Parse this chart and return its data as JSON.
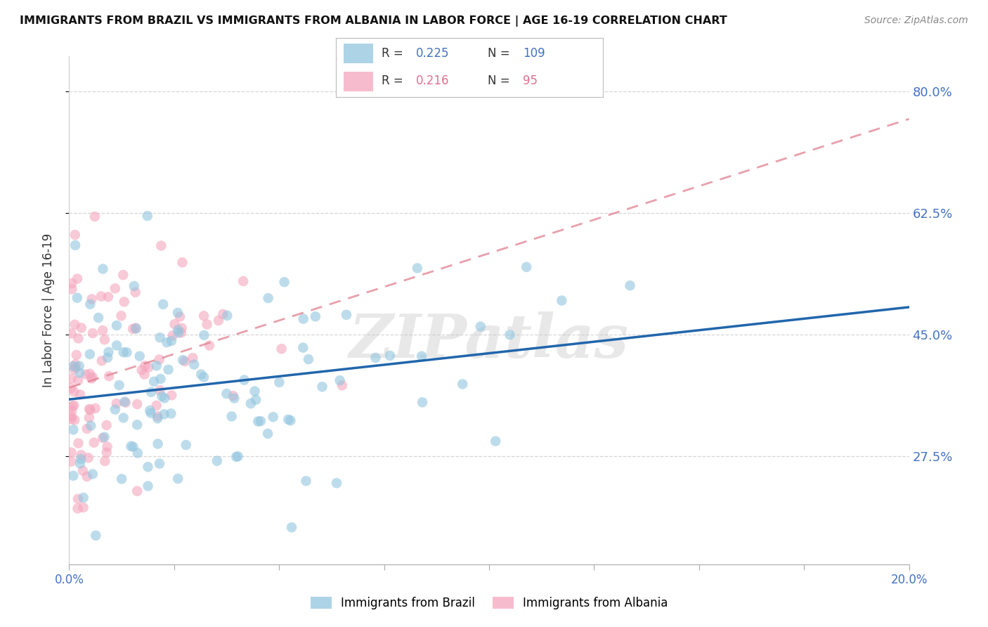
{
  "title": "IMMIGRANTS FROM BRAZIL VS IMMIGRANTS FROM ALBANIA IN LABOR FORCE | AGE 16-19 CORRELATION CHART",
  "source": "Source: ZipAtlas.com",
  "ylabel": "In Labor Force | Age 16-19",
  "x_min": 0.0,
  "x_max": 20.0,
  "y_min": 12.0,
  "y_max": 85.0,
  "y_ticks": [
    27.5,
    45.0,
    62.5,
    80.0
  ],
  "brazil_color": "#92c5de",
  "albania_color": "#f4a6bd",
  "brazil_line_color": "#2166ac",
  "albania_line_color": "#e08090",
  "brazil_R": 0.225,
  "brazil_N": 109,
  "albania_R": 0.216,
  "albania_N": 95,
  "brazil_label": "Immigrants from Brazil",
  "albania_label": "Immigrants from Albania",
  "watermark": "ZIPatlas",
  "background_color": "#ffffff",
  "grid_color": "#cccccc",
  "legend_R_color": "#4472c4",
  "legend_N_color": "#4472c4",
  "legend_albania_color": "#e07090"
}
